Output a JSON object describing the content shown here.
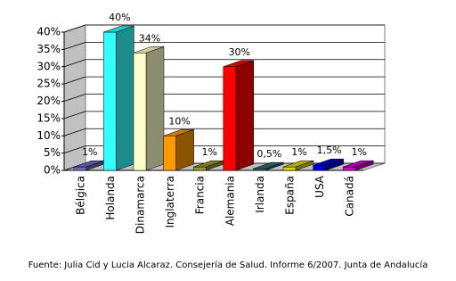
{
  "chart_data": {
    "type": "bar3d",
    "categories": [
      "Bélgica",
      "Holanda",
      "Dinamarca",
      "Inglaterra",
      "Francia",
      "Alemania",
      "Irlanda",
      "España",
      "USA",
      "Canadá"
    ],
    "values": [
      1,
      40,
      34,
      10,
      1,
      30,
      0.5,
      1,
      1.5,
      1
    ],
    "value_labels": [
      "1%",
      "40%",
      "34%",
      "10%",
      "1%",
      "30%",
      "0,5%",
      "1%",
      "1,5%",
      "1%"
    ],
    "colors": [
      "#6b6bbf",
      "#33ffff",
      "#ffffcc",
      "#ff9900",
      "#99992e",
      "#ff0000",
      "#2e6b6b",
      "#d6d600",
      "#0000cc",
      "#cc00cc"
    ],
    "ylim": [
      0,
      40
    ],
    "yticks": [
      {
        "value": 0,
        "label": "0%"
      },
      {
        "value": 5,
        "label": "5%"
      },
      {
        "value": 10,
        "label": "10%"
      },
      {
        "value": 15,
        "label": "15%"
      },
      {
        "value": 20,
        "label": "20%"
      },
      {
        "value": 25,
        "label": "25%"
      },
      {
        "value": 30,
        "label": "30%"
      },
      {
        "value": 35,
        "label": "35%"
      },
      {
        "value": 40,
        "label": "40%"
      }
    ],
    "grid": true,
    "source": "Fuente: Julia Cid y Lucia Alcaraz. Consejería de Salud. Informe 6/2007. Junta de Andalucía"
  }
}
